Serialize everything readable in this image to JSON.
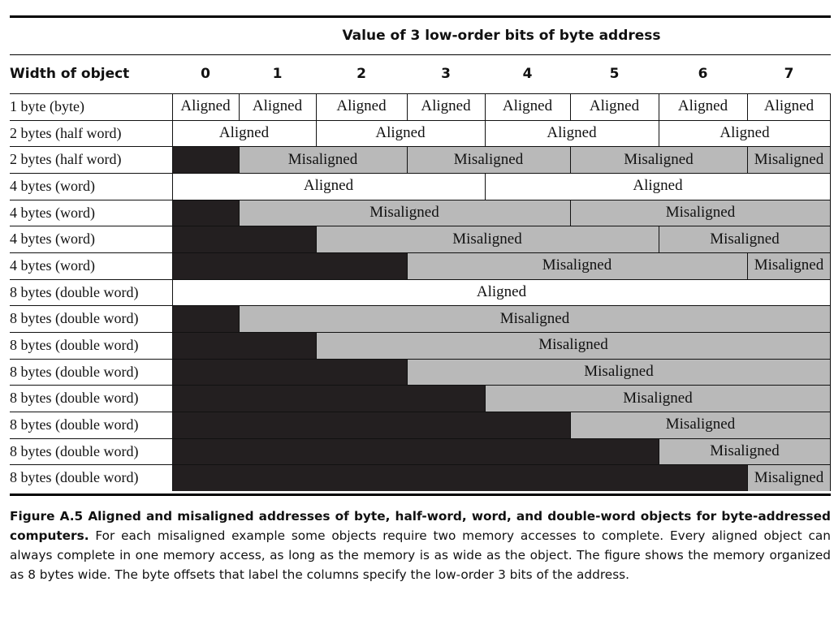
{
  "header": {
    "title": "Value of 3 low-order bits of byte address",
    "width_label": "Width of object",
    "columns": [
      "0",
      "1",
      "2",
      "3",
      "4",
      "5",
      "6",
      "7"
    ]
  },
  "rows": [
    {
      "label": "1 byte (byte)",
      "spans": [
        {
          "start": 0,
          "end": 1,
          "kind": "aligned",
          "text": "Aligned"
        },
        {
          "start": 1,
          "end": 2,
          "kind": "aligned",
          "text": "Aligned"
        },
        {
          "start": 2,
          "end": 3,
          "kind": "aligned",
          "text": "Aligned"
        },
        {
          "start": 3,
          "end": 4,
          "kind": "aligned",
          "text": "Aligned"
        },
        {
          "start": 4,
          "end": 5,
          "kind": "aligned",
          "text": "Aligned"
        },
        {
          "start": 5,
          "end": 6,
          "kind": "aligned",
          "text": "Aligned"
        },
        {
          "start": 6,
          "end": 7,
          "kind": "aligned",
          "text": "Aligned"
        },
        {
          "start": 7,
          "end": 8,
          "kind": "aligned",
          "text": "Aligned"
        }
      ]
    },
    {
      "label": "2 bytes (half word)",
      "spans": [
        {
          "start": 0,
          "end": 2,
          "kind": "aligned",
          "text": "Aligned"
        },
        {
          "start": 2,
          "end": 4,
          "kind": "aligned",
          "text": "Aligned"
        },
        {
          "start": 4,
          "end": 6,
          "kind": "aligned",
          "text": "Aligned"
        },
        {
          "start": 6,
          "end": 8,
          "kind": "aligned",
          "text": "Aligned"
        }
      ]
    },
    {
      "label": "2 bytes (half word)",
      "spans": [
        {
          "start": 0,
          "end": 1,
          "kind": "black",
          "text": ""
        },
        {
          "start": 1,
          "end": 3,
          "kind": "mis",
          "text": "Misaligned"
        },
        {
          "start": 3,
          "end": 5,
          "kind": "mis",
          "text": "Misaligned"
        },
        {
          "start": 5,
          "end": 7,
          "kind": "mis",
          "text": "Misaligned"
        },
        {
          "start": 7,
          "end": 8,
          "kind": "mis",
          "text": "Misaligned"
        }
      ]
    },
    {
      "label": "4 bytes (word)",
      "spans": [
        {
          "start": 0,
          "end": 4,
          "kind": "aligned",
          "text": "Aligned"
        },
        {
          "start": 4,
          "end": 8,
          "kind": "aligned",
          "text": "Aligned"
        }
      ]
    },
    {
      "label": "4 bytes (word)",
      "spans": [
        {
          "start": 0,
          "end": 1,
          "kind": "black",
          "text": ""
        },
        {
          "start": 1,
          "end": 5,
          "kind": "mis",
          "text": "Misaligned"
        },
        {
          "start": 5,
          "end": 8,
          "kind": "mis",
          "text": "Misaligned"
        }
      ]
    },
    {
      "label": "4 bytes (word)",
      "spans": [
        {
          "start": 0,
          "end": 2,
          "kind": "black",
          "text": ""
        },
        {
          "start": 2,
          "end": 6,
          "kind": "mis",
          "text": "Misaligned"
        },
        {
          "start": 6,
          "end": 8,
          "kind": "mis",
          "text": "Misaligned"
        }
      ]
    },
    {
      "label": "4 bytes (word)",
      "spans": [
        {
          "start": 0,
          "end": 3,
          "kind": "black",
          "text": ""
        },
        {
          "start": 3,
          "end": 7,
          "kind": "mis",
          "text": "Misaligned"
        },
        {
          "start": 7,
          "end": 8,
          "kind": "mis",
          "text": "Misaligned"
        }
      ]
    },
    {
      "label": "8 bytes (double word)",
      "spans": [
        {
          "start": 0,
          "end": 8,
          "kind": "aligned",
          "text": "Aligned"
        }
      ]
    },
    {
      "label": "8 bytes (double word)",
      "spans": [
        {
          "start": 0,
          "end": 1,
          "kind": "black",
          "text": ""
        },
        {
          "start": 1,
          "end": 8,
          "kind": "mis",
          "text": "Misaligned"
        }
      ]
    },
    {
      "label": "8 bytes (double word)",
      "spans": [
        {
          "start": 0,
          "end": 2,
          "kind": "black",
          "text": ""
        },
        {
          "start": 2,
          "end": 8,
          "kind": "mis",
          "text": "Misaligned"
        }
      ]
    },
    {
      "label": "8 bytes (double word)",
      "spans": [
        {
          "start": 0,
          "end": 3,
          "kind": "black",
          "text": ""
        },
        {
          "start": 3,
          "end": 8,
          "kind": "mis",
          "text": "Misaligned"
        }
      ]
    },
    {
      "label": "8 bytes (double word)",
      "spans": [
        {
          "start": 0,
          "end": 4,
          "kind": "black",
          "text": ""
        },
        {
          "start": 4,
          "end": 8,
          "kind": "mis",
          "text": "Misaligned"
        }
      ]
    },
    {
      "label": "8 bytes (double word)",
      "spans": [
        {
          "start": 0,
          "end": 5,
          "kind": "black",
          "text": ""
        },
        {
          "start": 5,
          "end": 8,
          "kind": "mis",
          "text": "Misaligned"
        }
      ]
    },
    {
      "label": "8 bytes (double word)",
      "spans": [
        {
          "start": 0,
          "end": 6,
          "kind": "black",
          "text": ""
        },
        {
          "start": 6,
          "end": 8,
          "kind": "mis",
          "text": "Misaligned"
        }
      ]
    },
    {
      "label": "8 bytes (double word)",
      "spans": [
        {
          "start": 0,
          "end": 7,
          "kind": "black",
          "text": ""
        },
        {
          "start": 7,
          "end": 8,
          "kind": "mis",
          "text": "Misaligned"
        }
      ]
    }
  ],
  "caption": {
    "bold": "Figure A.5 Aligned and misaligned addresses of byte, half-word, word, and double-word objects for byte-addressed computers.",
    "text": "For each misaligned example some objects require two memory accesses to complete. Every aligned object can always complete in one memory access, as long as the memory is as wide as the object. The figure shows the memory organized as 8 bytes wide. The byte offsets that label the columns specify the low-order 3 bits of the address."
  },
  "colors": {
    "aligned": "#ffffff",
    "misaligned": "#b9b9b9",
    "blocked": "#231f20"
  }
}
